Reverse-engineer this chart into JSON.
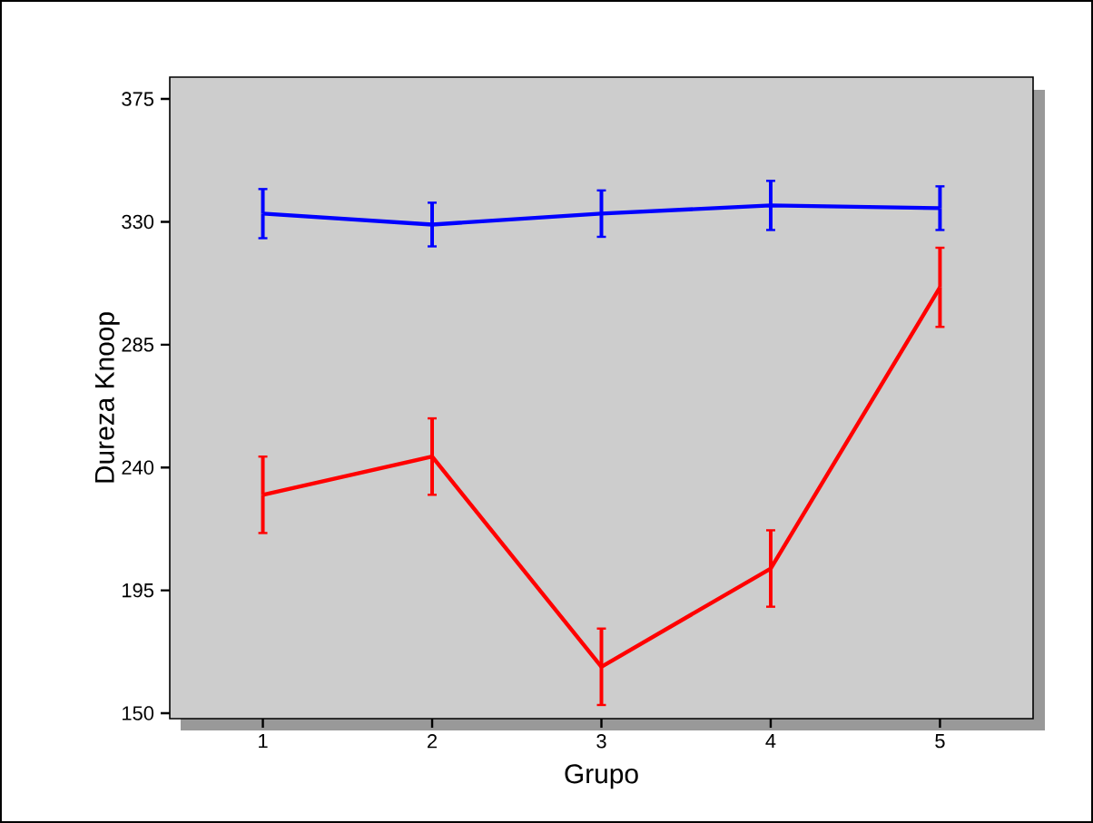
{
  "chart_data": {
    "type": "line",
    "xlabel": "Grupo",
    "ylabel": "Dureza Knoop",
    "x": [
      1,
      2,
      3,
      4,
      5
    ],
    "series": [
      {
        "color": "#0000ff",
        "values": [
          333,
          329,
          333,
          336,
          335
        ],
        "errors": [
          9,
          8,
          8.5,
          9,
          8
        ]
      },
      {
        "color": "#ff0000",
        "values": [
          230,
          244,
          167,
          203,
          306
        ],
        "errors": [
          14,
          14,
          14,
          14,
          14.5
        ]
      }
    ],
    "xlim": [
      0.45,
      5.55
    ],
    "xticks": [
      1,
      2,
      3,
      4,
      5
    ],
    "ylim": [
      148,
      383
    ],
    "yticks": [
      150,
      195,
      240,
      285,
      330,
      375
    ],
    "grid": false,
    "legend": false,
    "marker": "none",
    "line_style": "solid"
  }
}
